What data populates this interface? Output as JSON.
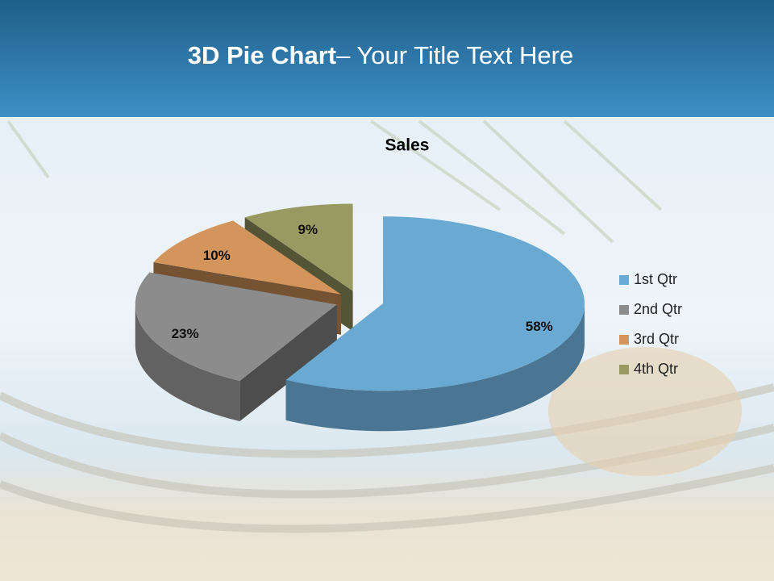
{
  "slide": {
    "title_bold": "3D Pie Chart",
    "title_rest": "– Your Title Text Here"
  },
  "chart_data": {
    "type": "pie",
    "title": "Sales",
    "categories": [
      "1st Qtr",
      "2nd Qtr",
      "3rd Qtr",
      "4th Qtr"
    ],
    "values": [
      58,
      23,
      10,
      9
    ],
    "value_labels": [
      "58%",
      "23%",
      "10%",
      "9%"
    ],
    "colors": [
      "#69a9d2",
      "#8c8c8c",
      "#d3955b",
      "#999a62"
    ],
    "legend": "right"
  }
}
